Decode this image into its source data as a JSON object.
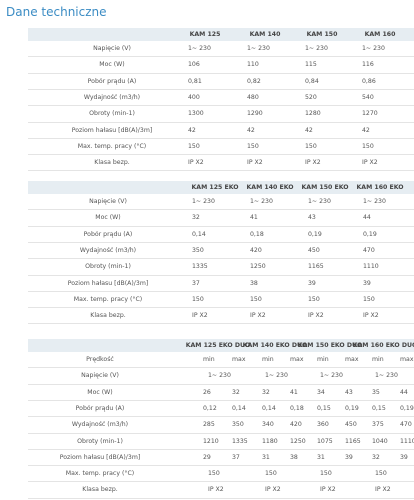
{
  "title": "Dane techniczne",
  "tables": [
    {
      "headers": [
        "KAM 125",
        "KAM 140",
        "KAM 150",
        "KAM 160"
      ],
      "rows": [
        {
          "label": "Napięcie (V)",
          "values": [
            "1~ 230",
            "1~ 230",
            "1~ 230",
            "1~ 230"
          ]
        },
        {
          "label": "Moc (W)",
          "values": [
            "106",
            "110",
            "115",
            "116"
          ]
        },
        {
          "label": "Pobór prądu (A)",
          "values": [
            "0,81",
            "0,82",
            "0,84",
            "0,86"
          ]
        },
        {
          "label": "Wydajność (m3/h)",
          "values": [
            "400",
            "480",
            "520",
            "540"
          ]
        },
        {
          "label": "Obroty (min-1)",
          "values": [
            "1300",
            "1290",
            "1280",
            "1270"
          ]
        },
        {
          "label": "Poziom hałasu [dB(A)/3m]",
          "values": [
            "42",
            "42",
            "42",
            "42"
          ]
        },
        {
          "label": "Max. temp. pracy (°C)",
          "values": [
            "150",
            "150",
            "150",
            "150"
          ]
        },
        {
          "label": "Klasa bezp.",
          "values": [
            "IP X2",
            "IP X2",
            "IP X2",
            "IP X2"
          ]
        }
      ]
    },
    {
      "headers": [
        "KAM 125 EKO",
        "KAM 140 EKO",
        "KAM 150 EKO",
        "KAM 160 EKO"
      ],
      "rows": [
        {
          "label": "Napięcie (V)",
          "values": [
            "1~ 230",
            "1~ 230",
            "1~ 230",
            "1~ 230"
          ]
        },
        {
          "label": "Moc (W)",
          "values": [
            "32",
            "41",
            "43",
            "44"
          ]
        },
        {
          "label": "Pobór prądu (A)",
          "values": [
            "0,14",
            "0,18",
            "0,19",
            "0,19"
          ]
        },
        {
          "label": "Wydajność (m3/h)",
          "values": [
            "350",
            "420",
            "450",
            "470"
          ]
        },
        {
          "label": "Obroty (min-1)",
          "values": [
            "1335",
            "1250",
            "1165",
            "1110"
          ]
        },
        {
          "label": "Poziom hałasu [dB(A)/3m]",
          "values": [
            "37",
            "38",
            "39",
            "39"
          ]
        },
        {
          "label": "Max. temp. pracy (°C)",
          "values": [
            "150",
            "150",
            "150",
            "150"
          ]
        },
        {
          "label": "Klasa bezp.",
          "values": [
            "IP X2",
            "IP X2",
            "IP X2",
            "IP X2"
          ]
        }
      ]
    },
    {
      "headers": [
        "KAM 125 EKO DUO",
        "KAM 140 EKO DUO",
        "KAM 150 EKO DUO",
        "KAM 160 EKO DUO"
      ],
      "rows": [
        {
          "label": "Prędkość",
          "values": [
            "min",
            "max",
            "min",
            "max",
            "min",
            "max",
            "min",
            "max"
          ]
        },
        {
          "label": "Napięcie (V)",
          "values": [
            "1~ 230",
            "1~ 230",
            "1~ 230",
            "1~ 230"
          ]
        },
        {
          "label": "Moc (W)",
          "values": [
            "26",
            "32",
            "32",
            "41",
            "34",
            "43",
            "35",
            "44"
          ]
        },
        {
          "label": "Pobór prądu (A)",
          "values": [
            "0,12",
            "0,14",
            "0,14",
            "0,18",
            "0,15",
            "0,19",
            "0,15",
            "0,19"
          ]
        },
        {
          "label": "Wydajność (m3/h)",
          "values": [
            "285",
            "350",
            "340",
            "420",
            "360",
            "450",
            "375",
            "470"
          ]
        },
        {
          "label": "Obroty (min-1)",
          "values": [
            "1210",
            "1335",
            "1180",
            "1250",
            "1075",
            "1165",
            "1040",
            "1110"
          ]
        },
        {
          "label": "Poziom hałasu [dB(A)/3m]",
          "values": [
            "29",
            "37",
            "31",
            "38",
            "31",
            "39",
            "32",
            "39"
          ]
        },
        {
          "label": "Max. temp. pracy (°C)",
          "values": [
            "150",
            "150",
            "150",
            "150"
          ]
        },
        {
          "label": "Klasa bezp.",
          "values": [
            "IP X2",
            "IP X2",
            "IP X2",
            "IP X2"
          ]
        }
      ]
    }
  ]
}
